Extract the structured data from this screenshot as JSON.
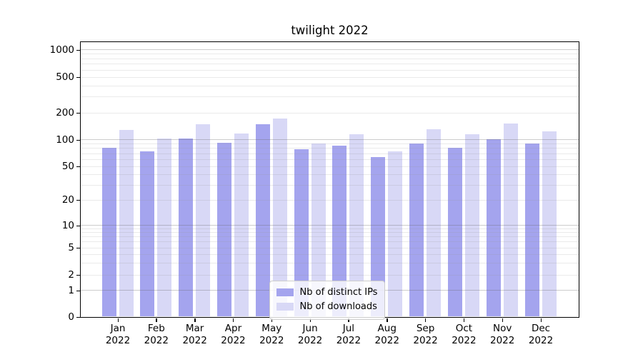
{
  "chart_data": {
    "type": "bar",
    "title": "twilight 2022",
    "categories": [
      "Jan",
      "Feb",
      "Mar",
      "Apr",
      "May",
      "Jun",
      "Jul",
      "Aug",
      "Sep",
      "Oct",
      "Nov",
      "Dec"
    ],
    "year_label": "2022",
    "series": [
      {
        "name": "Nb of distinct IPs",
        "color": "#a4a4ee",
        "values": [
          80,
          73,
          103,
          92,
          147,
          78,
          86,
          63,
          91,
          81,
          101,
          91
        ]
      },
      {
        "name": "Nb of downloads",
        "color": "#d8d8f6",
        "values": [
          127,
          102,
          147,
          117,
          170,
          90,
          115,
          73,
          131,
          115,
          151,
          124
        ]
      }
    ],
    "yscale": "symlog",
    "yticks": [
      0,
      1,
      2,
      5,
      10,
      20,
      50,
      100,
      200,
      500,
      1000
    ],
    "decade_ticks": [
      1,
      10,
      100,
      1000
    ],
    "minor_ticks": [
      3,
      4,
      6,
      7,
      8,
      9,
      30,
      40,
      60,
      70,
      80,
      90,
      300,
      400,
      600,
      700,
      800,
      900
    ],
    "ylim": [
      0,
      1200
    ],
    "grid": "on",
    "legend_position": "lower center"
  },
  "colors": {
    "axis": "#000000",
    "major_grid": "#c6c6c6",
    "minor_grid": "#e7e7e7",
    "background": "#ffffff"
  }
}
